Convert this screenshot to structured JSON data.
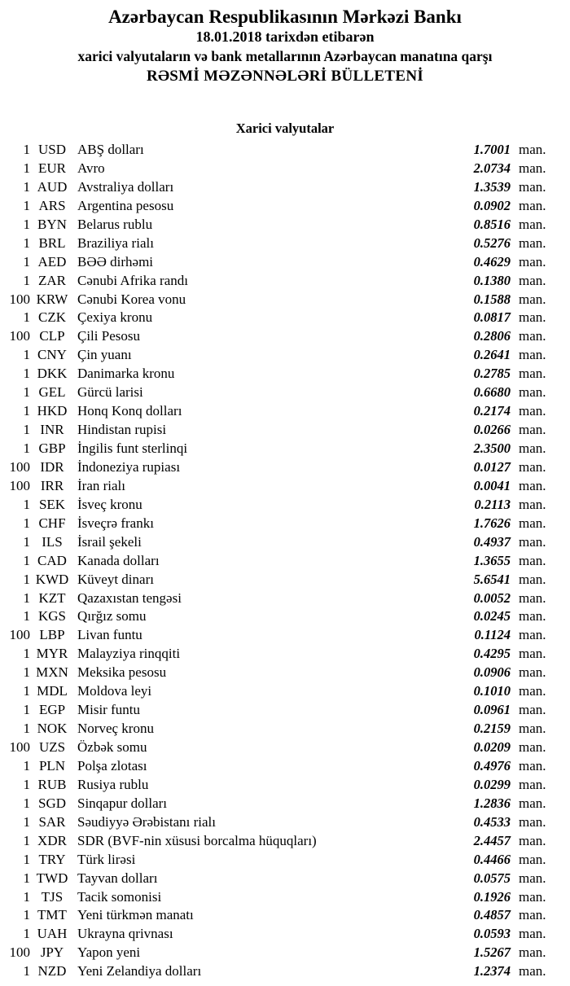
{
  "colors": {
    "background": "#ffffff",
    "text": "#000000"
  },
  "header": {
    "bank_name": "Azərbaycan Respublikasının Mərkəzi Bankı",
    "effective_date_line": "18.01.2018 tarixdən etibarən",
    "subtitle": "xarici valyutaların və bank metallarının Azərbaycan manatına qarşı",
    "bulletin_title": "RƏSMİ MƏZƏNNƏLƏRİ BÜLLETENİ"
  },
  "section_title": "Xarici valyutalar",
  "table": {
    "unit_label": "man.",
    "rows": [
      {
        "qty": "1",
        "code": "USD",
        "name": "ABŞ dolları",
        "rate": "1.7001"
      },
      {
        "qty": "1",
        "code": "EUR",
        "name": "Avro",
        "rate": "2.0734"
      },
      {
        "qty": "1",
        "code": "AUD",
        "name": "Avstraliya dolları",
        "rate": "1.3539"
      },
      {
        "qty": "1",
        "code": "ARS",
        "name": "Argentina pesosu",
        "rate": "0.0902"
      },
      {
        "qty": "1",
        "code": "BYN",
        "name": "Belarus rublu",
        "rate": "0.8516"
      },
      {
        "qty": "1",
        "code": "BRL",
        "name": "Braziliya rialı",
        "rate": "0.5276"
      },
      {
        "qty": "1",
        "code": "AED",
        "name": "BƏƏ dirhəmi",
        "rate": "0.4629"
      },
      {
        "qty": "1",
        "code": "ZAR",
        "name": "Cənubi Afrika randı",
        "rate": "0.1380"
      },
      {
        "qty": "100",
        "code": "KRW",
        "name": "Cənubi Korea vonu",
        "rate": "0.1588"
      },
      {
        "qty": "1",
        "code": "CZK",
        "name": "Çexiya kronu",
        "rate": "0.0817"
      },
      {
        "qty": "100",
        "code": "CLP",
        "name": "Çili Pesosu",
        "rate": "0.2806"
      },
      {
        "qty": "1",
        "code": "CNY",
        "name": "Çin yuanı",
        "rate": "0.2641"
      },
      {
        "qty": "1",
        "code": "DKK",
        "name": "Danimarka kronu",
        "rate": "0.2785"
      },
      {
        "qty": "1",
        "code": "GEL",
        "name": "Gürcü larisi",
        "rate": "0.6680"
      },
      {
        "qty": "1",
        "code": "HKD",
        "name": "Honq Konq dolları",
        "rate": "0.2174"
      },
      {
        "qty": "1",
        "code": "INR",
        "name": "Hindistan rupisi",
        "rate": "0.0266"
      },
      {
        "qty": "1",
        "code": "GBP",
        "name": "İngilis funt sterlinqi",
        "rate": "2.3500"
      },
      {
        "qty": "100",
        "code": "IDR",
        "name": "İndoneziya rupiası",
        "rate": "0.0127"
      },
      {
        "qty": "100",
        "code": "IRR",
        "name": "İran rialı",
        "rate": "0.0041"
      },
      {
        "qty": "1",
        "code": "SEK",
        "name": "İsveç kronu",
        "rate": "0.2113"
      },
      {
        "qty": "1",
        "code": "CHF",
        "name": "İsveçrə frankı",
        "rate": "1.7626"
      },
      {
        "qty": "1",
        "code": "ILS",
        "name": "İsrail şekeli",
        "rate": "0.4937"
      },
      {
        "qty": "1",
        "code": "CAD",
        "name": "Kanada dolları",
        "rate": "1.3655"
      },
      {
        "qty": "1",
        "code": "KWD",
        "name": "Küveyt dinarı",
        "rate": "5.6541"
      },
      {
        "qty": "1",
        "code": "KZT",
        "name": "Qazaxıstan tengəsi",
        "rate": "0.0052"
      },
      {
        "qty": "1",
        "code": "KGS",
        "name": "Qırğız somu",
        "rate": "0.0245"
      },
      {
        "qty": "100",
        "code": "LBP",
        "name": "Livan funtu",
        "rate": "0.1124"
      },
      {
        "qty": "1",
        "code": "MYR",
        "name": "Malayziya rinqqiti",
        "rate": "0.4295"
      },
      {
        "qty": "1",
        "code": "MXN",
        "name": "Meksika pesosu",
        "rate": "0.0906"
      },
      {
        "qty": "1",
        "code": "MDL",
        "name": "Moldova leyi",
        "rate": "0.1010"
      },
      {
        "qty": "1",
        "code": "EGP",
        "name": "Misir funtu",
        "rate": "0.0961"
      },
      {
        "qty": "1",
        "code": "NOK",
        "name": "Norveç kronu",
        "rate": "0.2159"
      },
      {
        "qty": "100",
        "code": "UZS",
        "name": "Özbək somu",
        "rate": "0.0209"
      },
      {
        "qty": "1",
        "code": "PLN",
        "name": "Polşa zlotası",
        "rate": "0.4976"
      },
      {
        "qty": "1",
        "code": "RUB",
        "name": "Rusiya rublu",
        "rate": "0.0299"
      },
      {
        "qty": "1",
        "code": "SGD",
        "name": "Sinqapur dolları",
        "rate": "1.2836"
      },
      {
        "qty": "1",
        "code": "SAR",
        "name": "Səudiyyə Ərəbistanı rialı",
        "rate": "0.4533"
      },
      {
        "qty": "1",
        "code": "XDR",
        "name": "SDR (BVF-nin xüsusi borcalma hüquqları)",
        "rate": "2.4457"
      },
      {
        "qty": "1",
        "code": "TRY",
        "name": "Türk lirəsi",
        "rate": "0.4466"
      },
      {
        "qty": "1",
        "code": "TWD",
        "name": "Tayvan dolları",
        "rate": "0.0575"
      },
      {
        "qty": "1",
        "code": "TJS",
        "name": "Tacik somonisi",
        "rate": "0.1926"
      },
      {
        "qty": "1",
        "code": "TMT",
        "name": "Yeni türkmən manatı",
        "rate": "0.4857"
      },
      {
        "qty": "1",
        "code": "UAH",
        "name": "Ukrayna qrivnası",
        "rate": "0.0593"
      },
      {
        "qty": "100",
        "code": "JPY",
        "name": "Yapon yeni",
        "rate": "1.5267"
      },
      {
        "qty": "1",
        "code": "NZD",
        "name": "Yeni Zelandiya dolları",
        "rate": "1.2374"
      }
    ]
  }
}
